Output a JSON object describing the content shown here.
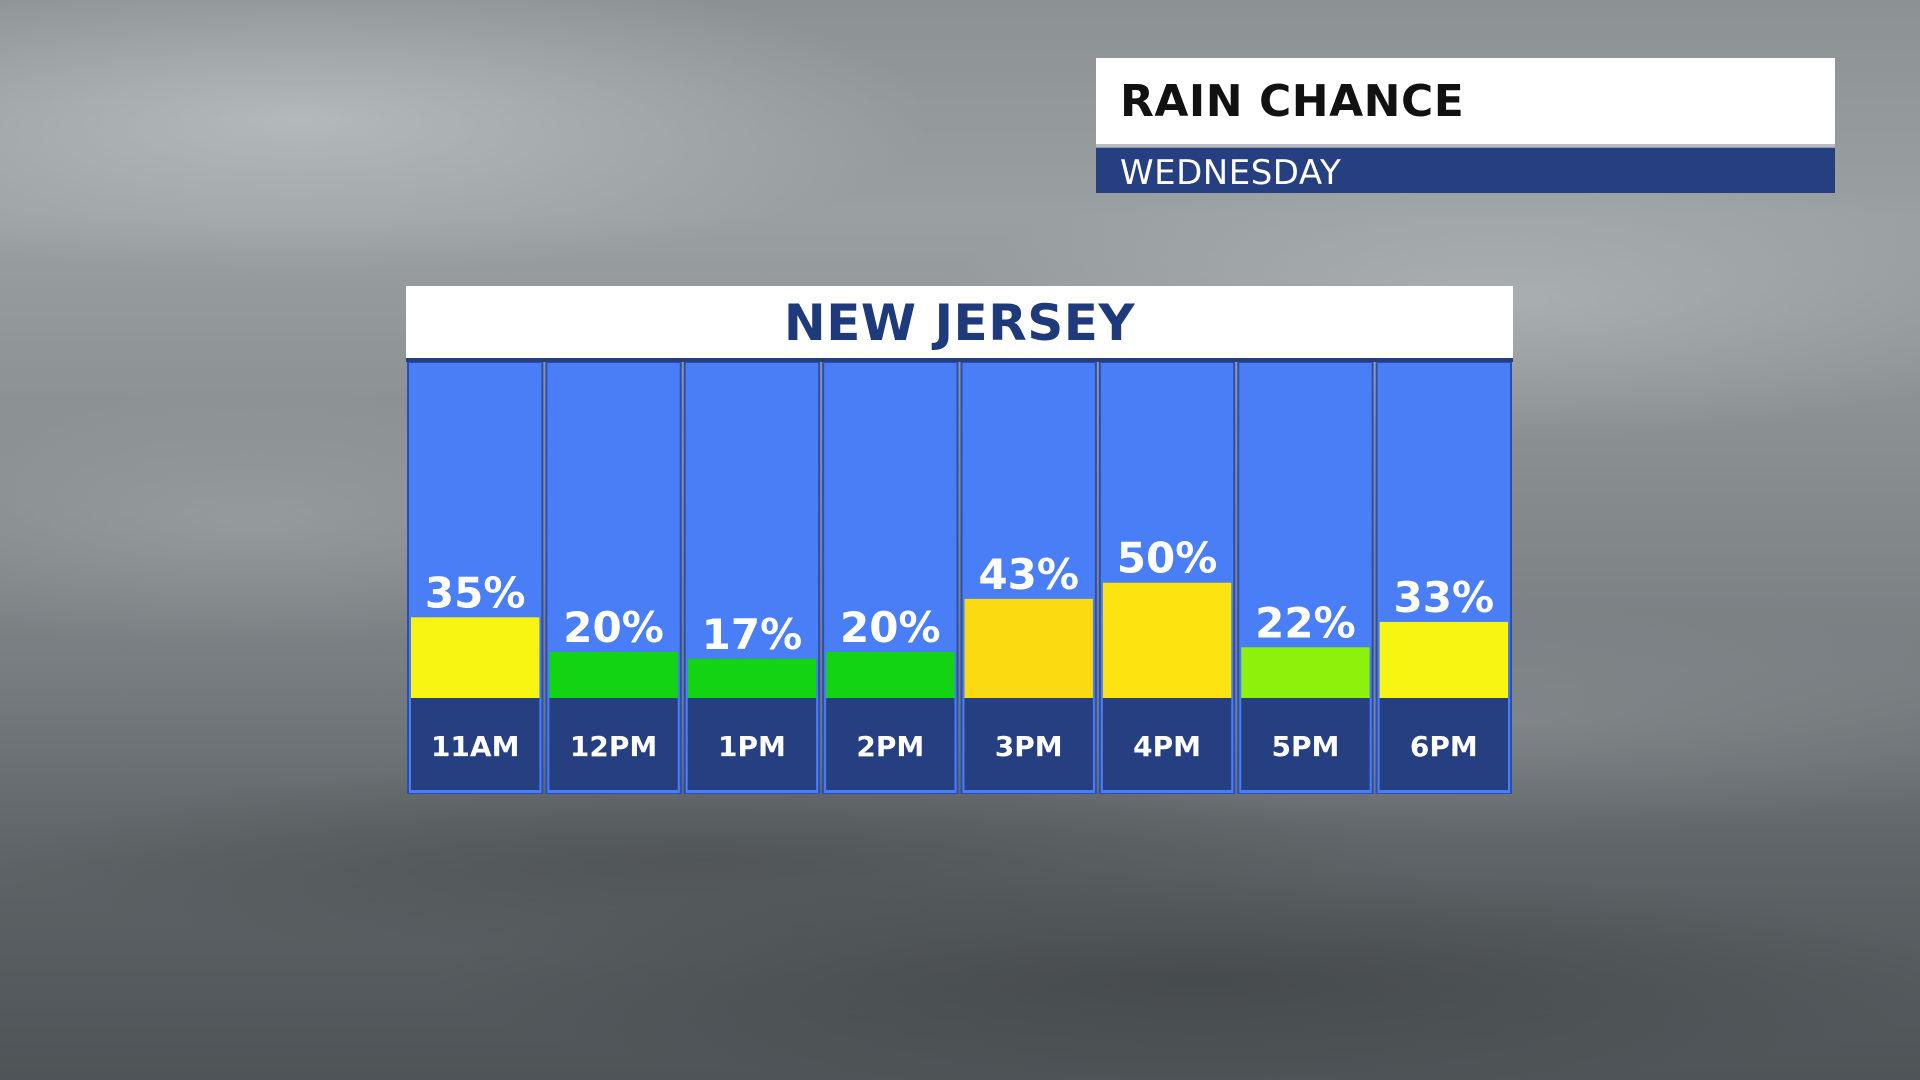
{
  "header": {
    "title": "RAIN CHANCE",
    "subtitle": "WEDNESDAY"
  },
  "panel": {
    "title": "NEW JERSEY"
  },
  "chart_data": {
    "type": "bar",
    "title": "NEW JERSEY",
    "categories": [
      "11AM",
      "12PM",
      "1PM",
      "2PM",
      "3PM",
      "4PM",
      "5PM",
      "6PM"
    ],
    "values": [
      35,
      20,
      17,
      20,
      43,
      50,
      22,
      33
    ],
    "value_labels": [
      "35%",
      "20%",
      "17%",
      "20%",
      "43%",
      "50%",
      "22%",
      "33%"
    ],
    "bar_colors": [
      "#f7f511",
      "#12d413",
      "#12d413",
      "#12d413",
      "#fbda12",
      "#fde411",
      "#8cf20c",
      "#f7f511"
    ],
    "ylim": [
      0,
      100
    ],
    "colors": {
      "column_bg": "#4a7ef6",
      "column_border": "#2b4fb0",
      "label_band": "#253f80",
      "text": "#ffffff"
    }
  }
}
